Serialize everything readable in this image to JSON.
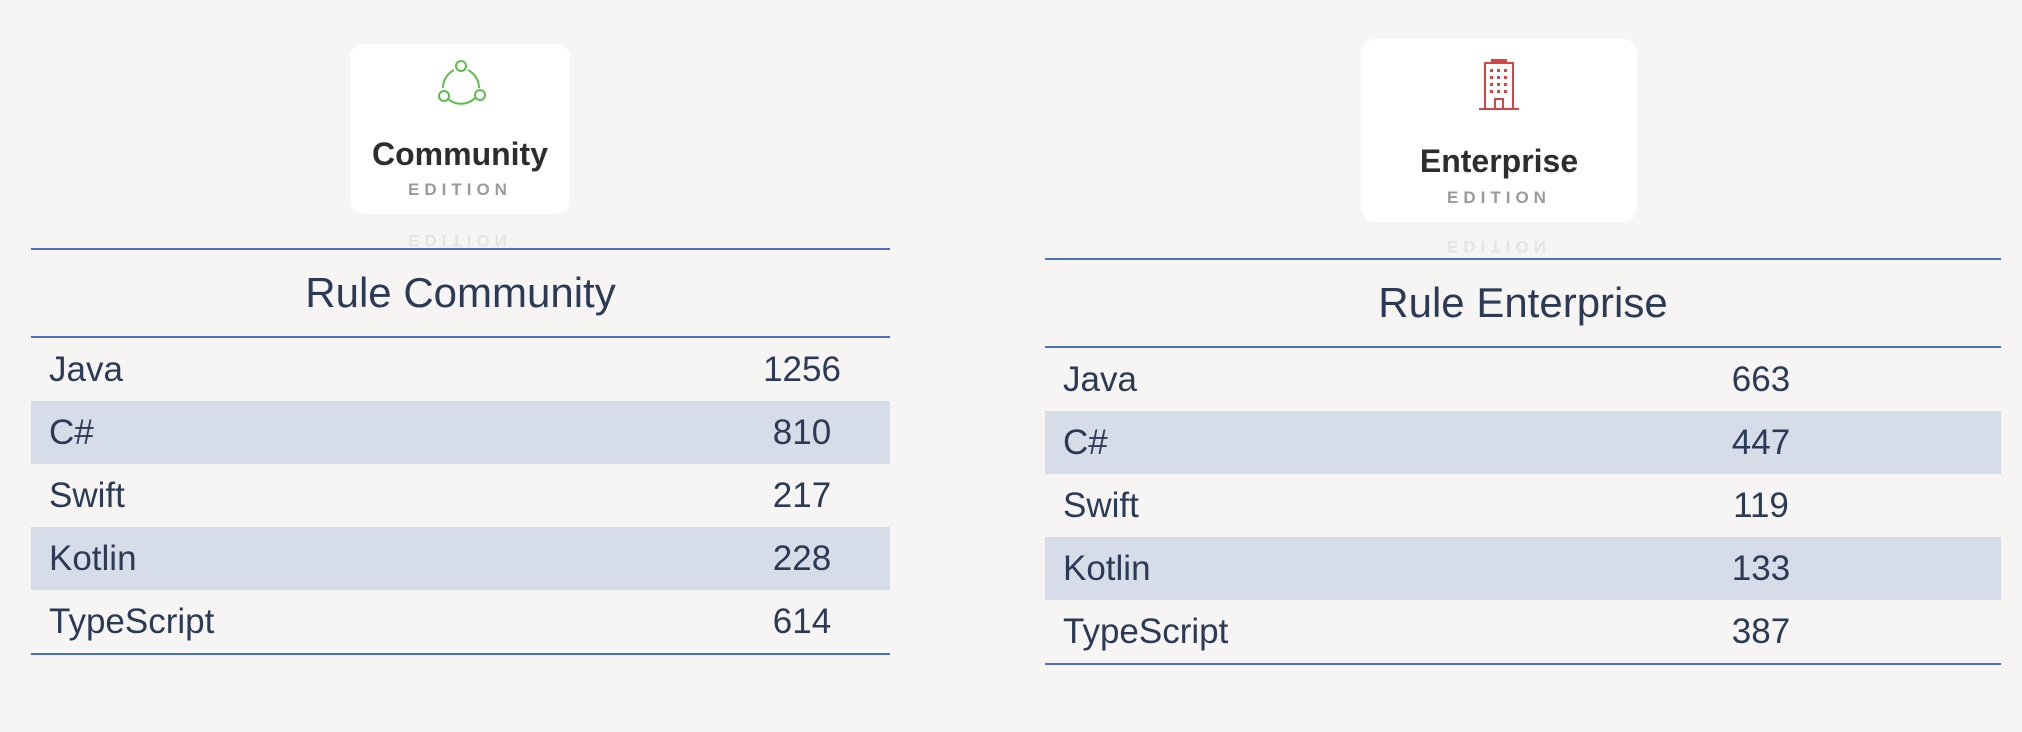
{
  "panels": [
    {
      "edition": {
        "name": "Community",
        "label": "EDITION"
      },
      "title": "Rule Community",
      "rows": [
        [
          "Java",
          "1256"
        ],
        [
          "C#",
          "810"
        ],
        [
          "Swift",
          "217"
        ],
        [
          "Kotlin",
          "228"
        ],
        [
          "TypeScript",
          "614"
        ]
      ]
    },
    {
      "edition": {
        "name": "Enterprise",
        "label": "EDITION"
      },
      "title": "Rule Enterprise",
      "rows": [
        [
          "Java",
          "663"
        ],
        [
          "C#",
          "447"
        ],
        [
          "Swift",
          "119"
        ],
        [
          "Kotlin",
          "133"
        ],
        [
          "TypeScript",
          "387"
        ]
      ]
    }
  ]
}
